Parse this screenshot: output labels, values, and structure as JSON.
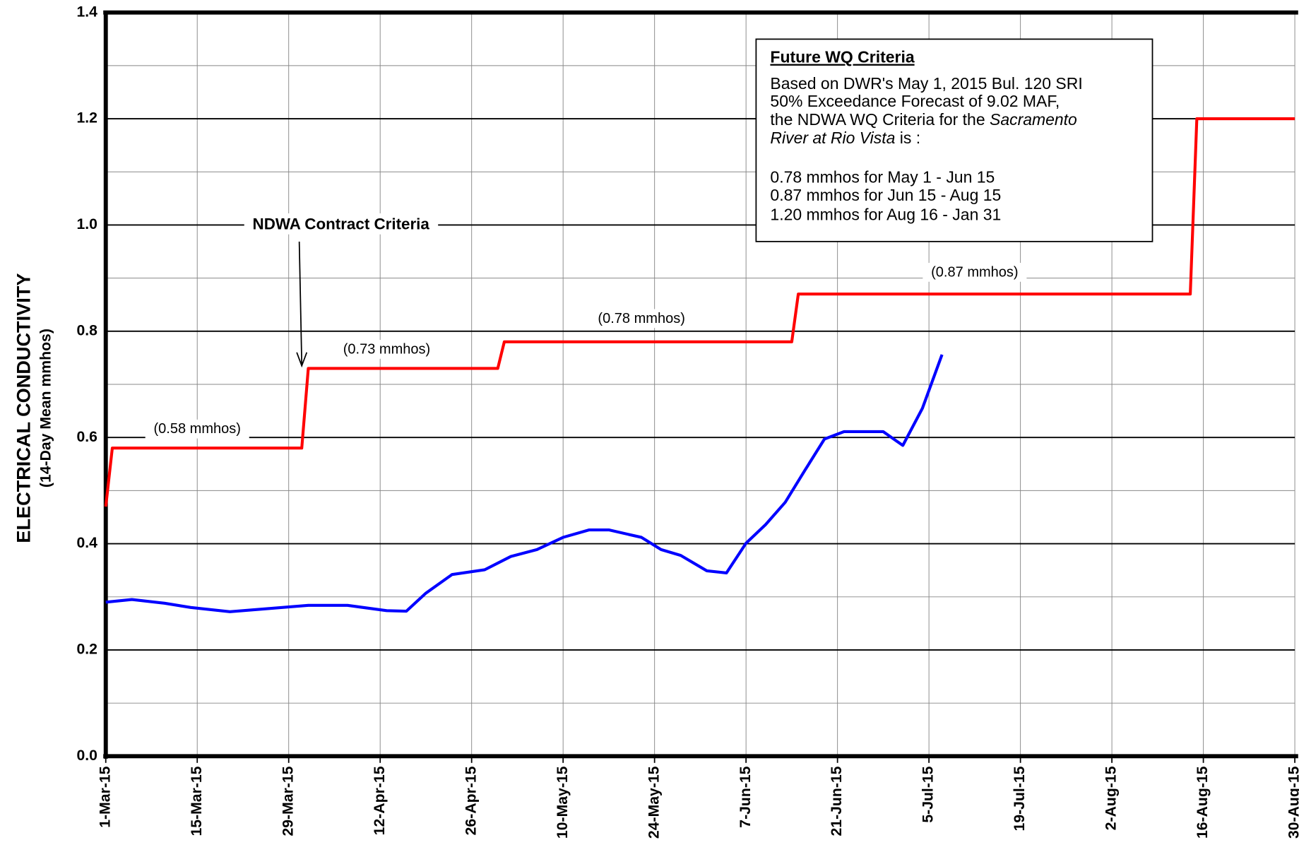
{
  "chart_data": {
    "type": "line",
    "y_label": "ELECTRICAL CONDUCTIVITY",
    "y_label_sub": "(14-Day Mean mmhos)",
    "xlim": [
      "2015-03-01",
      "2015-08-30"
    ],
    "xticks": [
      {
        "value": "2015-03-01",
        "label": "1-Mar-15"
      },
      {
        "value": "2015-03-15",
        "label": "15-Mar-15"
      },
      {
        "value": "2015-03-29",
        "label": "29-Mar-15"
      },
      {
        "value": "2015-04-12",
        "label": "12-Apr-15"
      },
      {
        "value": "2015-04-26",
        "label": "26-Apr-15"
      },
      {
        "value": "2015-05-10",
        "label": "10-May-15"
      },
      {
        "value": "2015-05-24",
        "label": "24-May-15"
      },
      {
        "value": "2015-06-07",
        "label": "7-Jun-15"
      },
      {
        "value": "2015-06-21",
        "label": "21-Jun-15"
      },
      {
        "value": "2015-07-05",
        "label": "5-Jul-15"
      },
      {
        "value": "2015-07-19",
        "label": "19-Jul-15"
      },
      {
        "value": "2015-08-02",
        "label": "2-Aug-15"
      },
      {
        "value": "2015-08-16",
        "label": "16-Aug-15"
      },
      {
        "value": "2015-08-30",
        "label": "30-Aug-15"
      }
    ],
    "ylim": [
      0,
      1.4
    ],
    "yticks": [
      {
        "value": 0,
        "label": "0.0"
      },
      0.2,
      0.4,
      0.6,
      0.8,
      {
        "value": 1,
        "label": "1.0"
      },
      1.2,
      1.4
    ],
    "minor_yticks": [
      0.1,
      0.3,
      0.5,
      0.7,
      0.9,
      1.1,
      1.3
    ],
    "grid": true,
    "series": [
      {
        "color": "#ff0000",
        "x": [
          "2015-03-01",
          "2015-03-02",
          "2015-03-31",
          "2015-04-01",
          "2015-04-30",
          "2015-05-01",
          "2015-06-14",
          "2015-06-15",
          "2015-08-14",
          "2015-08-15",
          "2015-08-30"
        ],
        "values": [
          0.47,
          0.58,
          0.58,
          0.73,
          0.73,
          0.78,
          0.78,
          0.87,
          0.87,
          1.2,
          1.2
        ]
      },
      {
        "color": "#0000ff",
        "x": [
          "2015-03-01",
          "2015-03-05",
          "2015-03-10",
          "2015-03-14",
          "2015-03-20",
          "2015-03-26",
          "2015-04-01",
          "2015-04-07",
          "2015-04-13",
          "2015-04-16",
          "2015-04-19",
          "2015-04-23",
          "2015-04-28",
          "2015-05-02",
          "2015-05-06",
          "2015-05-10",
          "2015-05-14",
          "2015-05-17",
          "2015-05-22",
          "2015-05-25",
          "2015-05-28",
          "2015-06-01",
          "2015-06-04",
          "2015-06-07",
          "2015-06-10",
          "2015-06-13",
          "2015-06-16",
          "2015-06-19",
          "2015-06-22",
          "2015-06-25",
          "2015-06-28",
          "2015-07-01",
          "2015-07-04",
          "2015-07-07"
        ],
        "values": [
          0.29,
          0.295,
          0.288,
          0.28,
          0.272,
          0.278,
          0.284,
          0.284,
          0.274,
          0.273,
          0.307,
          0.342,
          0.351,
          0.376,
          0.389,
          0.412,
          0.426,
          0.426,
          0.412,
          0.389,
          0.378,
          0.349,
          0.345,
          0.401,
          0.436,
          0.478,
          0.538,
          0.597,
          0.611,
          0.611,
          0.611,
          0.585,
          0.655,
          0.756
        ]
      }
    ],
    "annotations": [
      {
        "text": "(0.58 mmhos)",
        "x": "2015-03-15",
        "y": 0.615
      },
      {
        "text": "(0.73 mmhos)",
        "x": "2015-04-13",
        "y": 0.765
      },
      {
        "text": "(0.78 mmhos)",
        "x": "2015-05-22",
        "y": 0.823
      },
      {
        "text": "(0.87 mmhos)",
        "x": "2015-07-12",
        "y": 0.91
      }
    ],
    "callout": {
      "text": "NDWA Contract Criteria",
      "x": "2015-04-06",
      "y": 1.0,
      "arrow_x": "2015-03-31",
      "arrow_y": 0.735
    },
    "info_box": {
      "title": "Future  WQ Criteria",
      "lines": [
        [
          {
            "text": "Based on DWR's May 1, 2015 Bul. 120 SRI"
          }
        ],
        [
          {
            "text": "50% Exceedance Forecast of 9.02 MAF,"
          }
        ],
        [
          {
            "text": "the NDWA WQ Criteria for the "
          },
          {
            "text": "Sacramento",
            "italic": true
          }
        ],
        [
          {
            "text": "River at Rio Vista",
            "italic": true
          },
          {
            "text": " is :"
          }
        ],
        [],
        [
          {
            "text": "0.78 mmhos for May 1 - Jun 15"
          }
        ],
        [
          {
            "text": "0.87 mmhos for Jun 15 - Aug 15"
          }
        ],
        [
          {
            "text": "1.20 mmhos for Aug 16 - Jan 31"
          }
        ]
      ]
    }
  }
}
